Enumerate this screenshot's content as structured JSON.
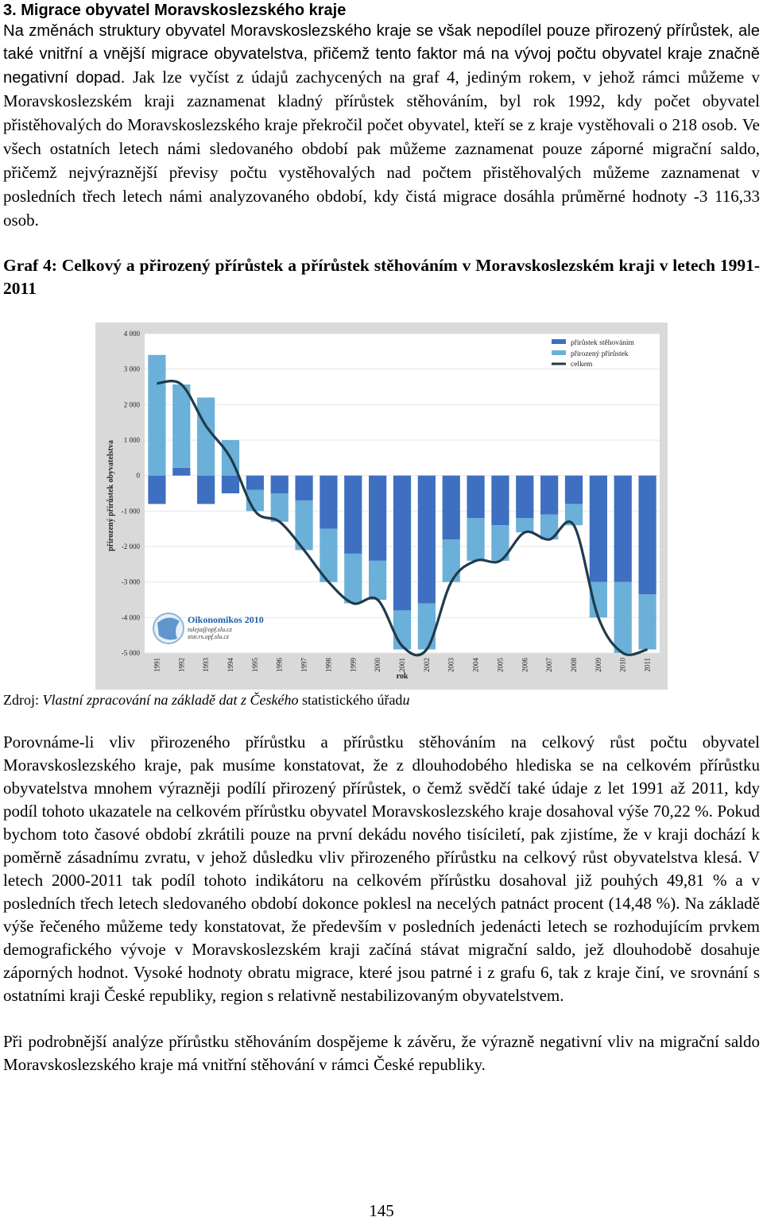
{
  "heading": "3. Migrace obyvatel Moravskoslezského kraje",
  "intro_part1": "Na změnách struktury obyvatel Moravskoslezského kraje se však nepodílel pouze přirozený přírůstek, ale také vnitřní a vnější migrace obyvatelstva, přičemž tento faktor má na vývoj počtu obyvatel kraje značně negativní dopad.",
  "intro_part2": "Jak lze vyčíst z údajů zachycených na graf 4, jediným rokem, v jehož rámci můžeme v Moravskoslezském kraji zaznamenat kladný přírůstek stěhováním, byl rok 1992, kdy počet obyvatel přistěhovalých do Moravskoslezského kraje překročil počet obyvatel, kteří se z kraje vystěhovali o 218 osob.",
  "intro_part3": "Ve všech ostatních letech námi sledovaného období pak můžeme zaznamenat pouze záporné migrační saldo, přičemž nejvýraznější převisy počtu vystěhovalých nad počtem přistěhovalých můžeme zaznamenat v posledních třech letech námi analyzovaného období, kdy čistá migrace dosáhla průměrné hodnoty -3 116,33 osob.",
  "graph_title": "Graf 4: Celkový a přirozený přírůstek a přírůstek stěhováním v Moravskoslezském kraji v letech 1991-2011",
  "source_prefix": "Zdroj: ",
  "source_italic": "Vlastní zpracování na základě dat z Českého",
  "source_rest": " statistického úřad",
  "source_end": "u",
  "para2_part1": "Porovnáme-li vliv přirozeného přírůstku a přírůstku stěhováním na celkový růst počtu obyvatel Moravskoslezského kraje, pak musíme konstatovat, že z dlouhodobého hlediska se na celkovém přírůstku obyvatelstva mnohem výrazněji podílí přirozený přírůstek, o čemž svědčí také údaje z let 1991 až 2011, kdy podíl tohoto ukazatele na celkovém přírůstku obyvatel Moravskoslezského kraje dosahoval výše 70,22 %.",
  "para2_part2": "Pokud bychom toto časové období zkrátili pouze na první dekádu nového tisíciletí, pak zjistíme, že v kraji dochází k poměrně zásadnímu zvratu, v jehož důsledku vliv přirozeného přírůstku na celkový růst obyvatelstva klesá.",
  "para2_part3": "V letech 2000-2011 tak podíl tohoto indikátoru na celkovém přírůstku dosahoval již pouhých 49,81 % a v posledních třech letech sledovaného období dokonce poklesl na necelých patnáct procent (14,48 %). Na základě výše řečeného můžeme tedy konstatovat, že především v posledních jedenácti letech se rozhodujícím prvkem demografického vývoje v Moravskoslezském kraji začíná stávat migrační saldo, jež dlouhodobě dosahuje záporných hodnot.",
  "para2_part4": "Vysoké hodnoty obratu migrace, které jsou patrné i z grafu 6, tak z kraje činí, ve srovnání s ostatními kraji České republiky, region s relativně nestabilizovaným obyvatelstvem.",
  "para3": "Při podrobnější analýze přírůstku stěhováním dospějeme k závěru, že výrazně negativní vliv na migrační saldo Moravskoslezského kraje má vnitřní stěhování v rámci České republiky.",
  "page_number": "145",
  "chart_data": {
    "type": "bar",
    "categories": [
      "1991",
      "1992",
      "1993",
      "1994",
      "1995",
      "1996",
      "1997",
      "1998",
      "1999",
      "2000",
      "2001",
      "2002",
      "2003",
      "2004",
      "2005",
      "2006",
      "2007",
      "2008",
      "2009",
      "2010",
      "2011"
    ],
    "series": [
      {
        "name": "přírůstek stěhováním",
        "color": "#3e6fc1",
        "values": [
          -800,
          218,
          -800,
          -500,
          -400,
          -500,
          -700,
          -1500,
          -2200,
          -2400,
          -3800,
          -3600,
          -1800,
          -1200,
          -1400,
          -1200,
          -1100,
          -800,
          -3000,
          -3000,
          -3350
        ]
      },
      {
        "name": "přirozený přírůstek",
        "color": "#6ab0d8",
        "values": [
          3400,
          2350,
          2200,
          1000,
          -600,
          -800,
          -1400,
          -1500,
          -1400,
          -1100,
          -1100,
          -1300,
          -1200,
          -1200,
          -1000,
          -400,
          -700,
          -600,
          -1000,
          -2000,
          -1550
        ]
      },
      {
        "name": "celkem",
        "color": "#1f3b4d",
        "type": "line",
        "values": [
          2600,
          2568,
          1400,
          500,
          -1000,
          -1300,
          -2100,
          -3000,
          -3600,
          -3500,
          -4800,
          -4900,
          -3000,
          -2400,
          -2400,
          -1600,
          -1800,
          -1400,
          -4000,
          -5000,
          -4900
        ]
      }
    ],
    "ylabel": "přirozený přírůstek obyvatelstva",
    "xlabel": "rok",
    "ylim": [
      -5000,
      4000
    ],
    "yticks": [
      "4 000",
      "3 000",
      "2 000",
      "1 000",
      "0",
      "-1 000",
      "-2 000",
      "-3 000",
      "-4 000",
      "-5 000"
    ],
    "legend_position": "top-right",
    "logo_title": "Oikonomikos 2010",
    "logo_line1": "tuleja@opf.slu.cz",
    "logo_line2": "stat.rs.opf.slu.cz"
  }
}
